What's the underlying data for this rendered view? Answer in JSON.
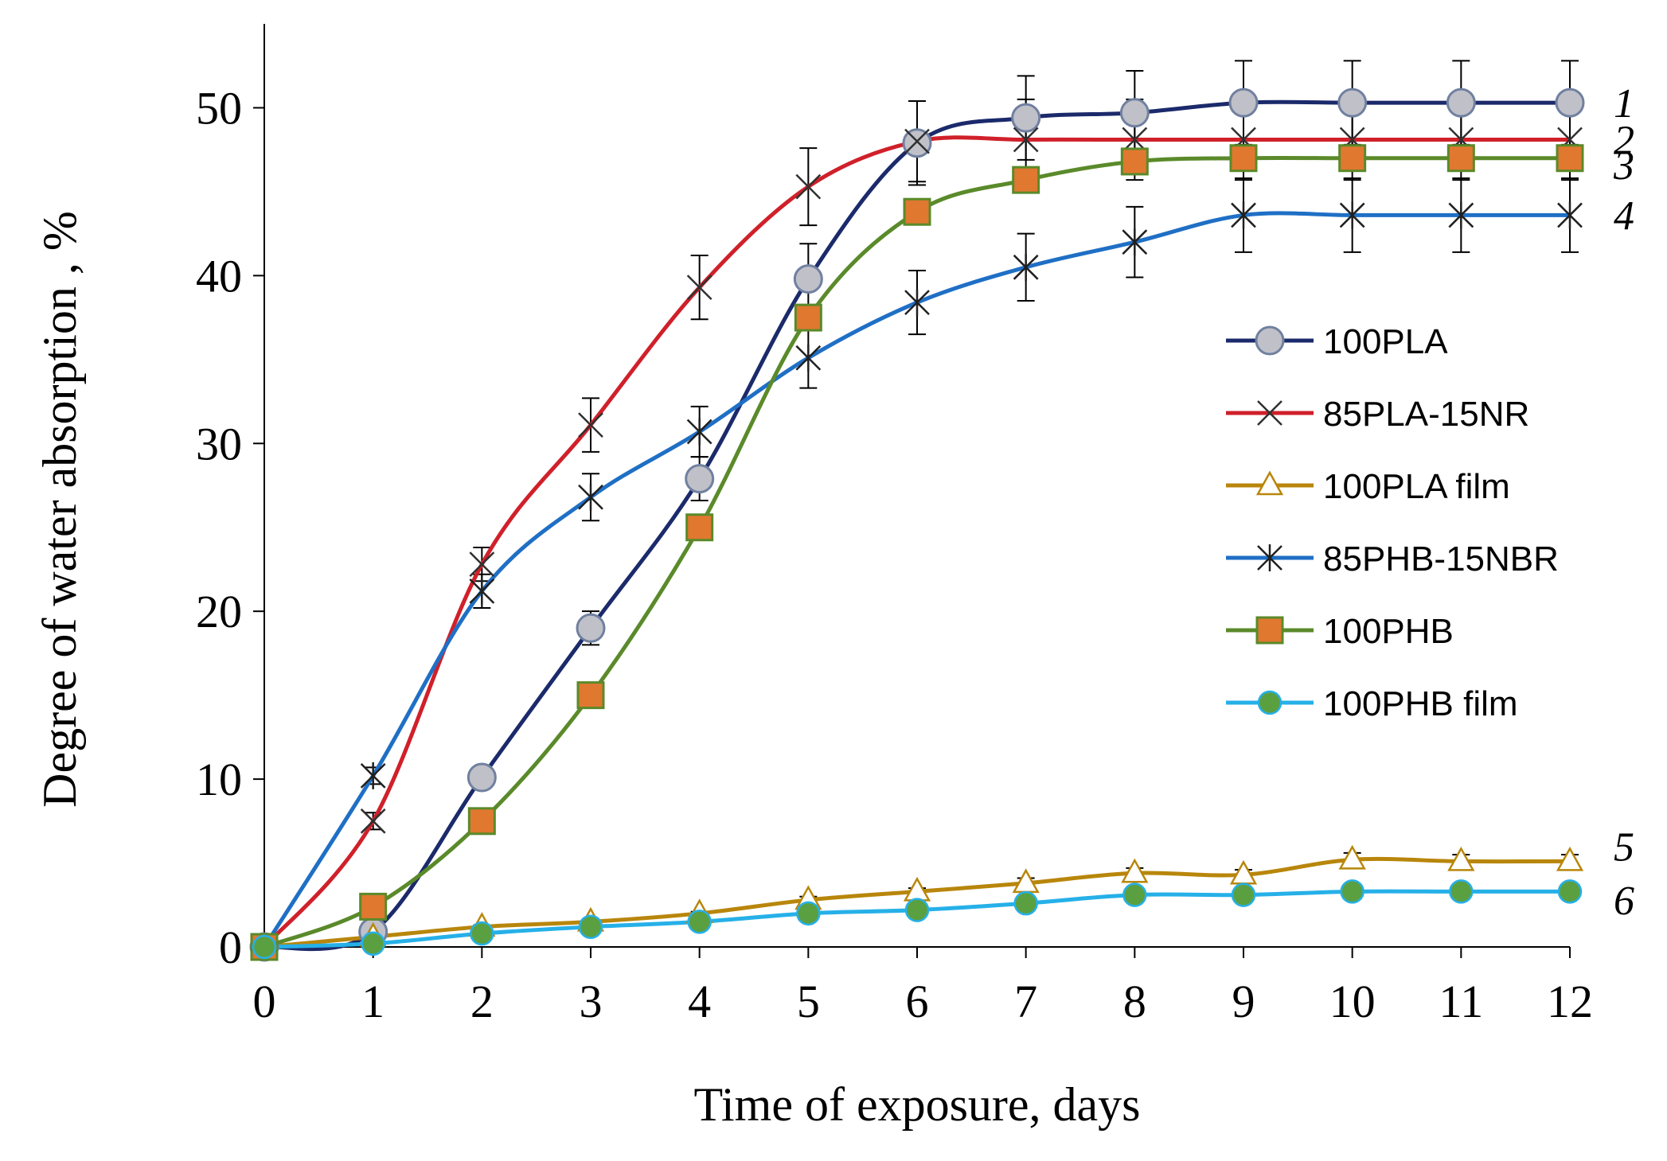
{
  "chart_data": {
    "type": "line",
    "xlabel": "Time of exposure,  days",
    "ylabel": "Degree of water absorption  , %",
    "xlim": [
      0,
      12
    ],
    "ylim": [
      0,
      55
    ],
    "xticks": [
      0,
      1,
      2,
      3,
      4,
      5,
      6,
      7,
      8,
      9,
      10,
      11,
      12
    ],
    "yticks": [
      0,
      10,
      20,
      30,
      40,
      50
    ],
    "x": [
      0,
      1,
      2,
      3,
      4,
      5,
      6,
      7,
      8,
      9,
      10,
      11,
      12
    ],
    "grid": false,
    "legend_position": "right",
    "series": [
      {
        "name": "100PLA",
        "values": [
          0,
          0.9,
          10.1,
          19.0,
          27.9,
          39.8,
          47.9,
          49.4,
          49.7,
          50.3,
          50.3,
          50.3,
          50.3
        ],
        "errors": [
          0,
          0.5,
          0.6,
          1.0,
          1.3,
          2.1,
          2.5,
          2.5,
          2.5,
          2.5,
          2.5,
          2.5,
          2.5
        ],
        "color": "#1b2a6b",
        "marker": "circle",
        "marker_fill": "#c0c0c8",
        "curve_label": "1"
      },
      {
        "name": "85PLA-15NR",
        "values": [
          0,
          7.5,
          22.8,
          31.1,
          39.3,
          45.3,
          48.0,
          48.1,
          48.1,
          48.1,
          48.1,
          48.1,
          48.1
        ],
        "errors": [
          0,
          0.5,
          1.0,
          1.6,
          1.9,
          2.3,
          2.4,
          2.4,
          2.4,
          2.4,
          2.4,
          2.4,
          2.4
        ],
        "color": "#d0202a",
        "marker": "x",
        "curve_label": "2"
      },
      {
        "name": "100PLA film",
        "values": [
          0,
          0.6,
          1.2,
          1.5,
          2.0,
          2.8,
          3.3,
          3.8,
          4.4,
          4.3,
          5.2,
          5.1,
          5.1
        ],
        "errors": [
          0,
          0.1,
          0.1,
          0.1,
          0.1,
          0.2,
          0.2,
          0.3,
          0.3,
          0.3,
          0.4,
          0.4,
          0.4
        ],
        "color": "#b8860b",
        "marker": "triangle",
        "curve_label": "5"
      },
      {
        "name": "85PHB-15NBR",
        "values": [
          0,
          10.2,
          21.2,
          26.8,
          30.7,
          35.1,
          38.4,
          40.5,
          42.0,
          43.6,
          43.6,
          43.6,
          43.6
        ],
        "errors": [
          0,
          0.5,
          1.0,
          1.4,
          1.5,
          1.8,
          1.9,
          2.0,
          2.1,
          2.2,
          2.2,
          2.2,
          2.2
        ],
        "color": "#1f6fc5",
        "marker": "star",
        "curve_label": "4"
      },
      {
        "name": "100PHB",
        "values": [
          0,
          2.4,
          7.5,
          15.0,
          25.0,
          37.5,
          43.8,
          45.7,
          46.8,
          47.0,
          47.0,
          47.0,
          47.0
        ],
        "color": "#5a8a2a",
        "marker": "square",
        "marker_fill": "#e07830",
        "curve_label": "3"
      },
      {
        "name": "100PHB film",
        "values": [
          0,
          0.2,
          0.8,
          1.2,
          1.5,
          2.0,
          2.2,
          2.6,
          3.1,
          3.1,
          3.3,
          3.3,
          3.3
        ],
        "color": "#26b0e8",
        "marker": "dot",
        "marker_fill": "#5aa040",
        "curve_label": "6"
      }
    ]
  }
}
